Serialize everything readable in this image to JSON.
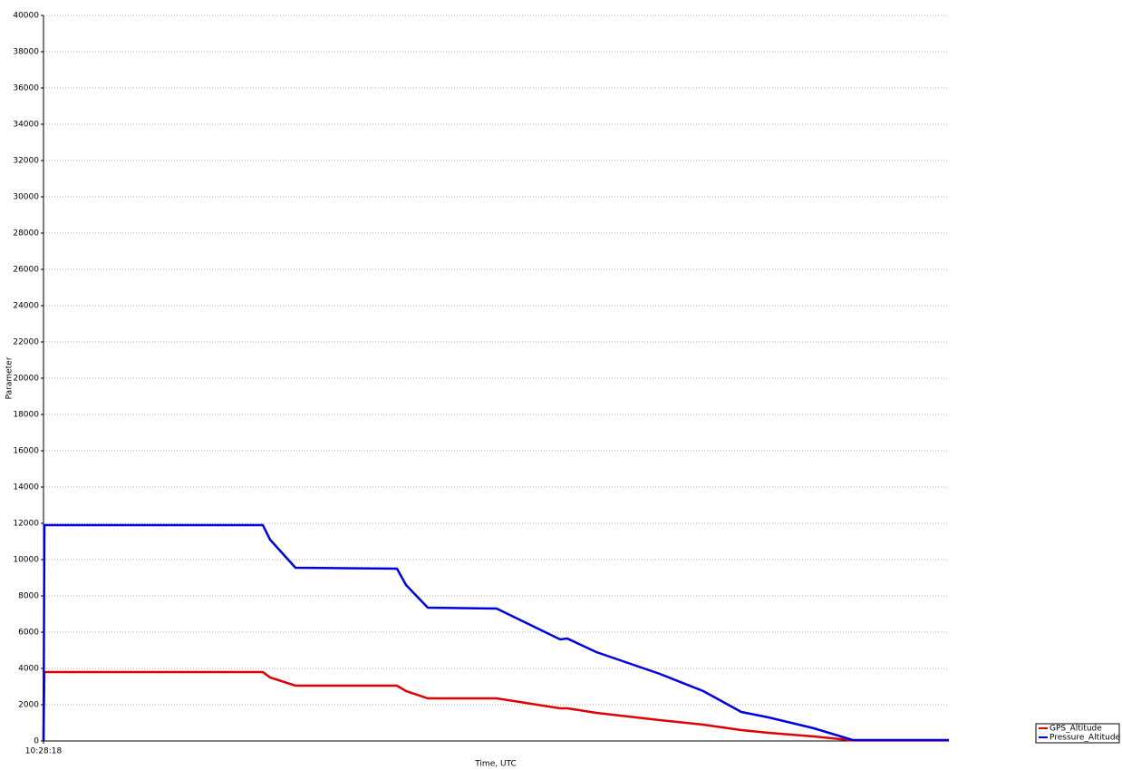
{
  "chart_data": {
    "type": "line",
    "x_label": "Time, UTC",
    "y_label": "Parameter",
    "x": [
      0,
      1,
      242,
      250,
      278,
      390,
      400,
      424,
      500,
      570,
      578,
      610,
      680,
      728,
      770,
      800,
      850,
      893,
      999
    ],
    "xlim": [
      0,
      999
    ],
    "xticks": [
      {
        "value": 0,
        "label": "10:28:18"
      }
    ],
    "ylim": [
      0,
      40000
    ],
    "yticks": [
      0,
      2000,
      4000,
      6000,
      8000,
      10000,
      12000,
      14000,
      16000,
      18000,
      20000,
      22000,
      24000,
      26000,
      28000,
      30000,
      32000,
      34000,
      36000,
      38000,
      40000
    ],
    "grid": true,
    "legend": "bottom-right",
    "series": [
      {
        "name": "GPS_Altitude",
        "color": "#e00000",
        "values": [
          0,
          3800,
          3800,
          3500,
          3050,
          3050,
          2750,
          2350,
          2350,
          1800,
          1800,
          1550,
          1150,
          900,
          600,
          450,
          250,
          30,
          30
        ]
      },
      {
        "name": "Pressure_Altitude",
        "color": "#0000e0",
        "values": [
          0,
          11900,
          11900,
          11100,
          9550,
          9500,
          8600,
          7350,
          7300,
          5600,
          5650,
          4900,
          3700,
          2750,
          1600,
          1300,
          700,
          50,
          50
        ]
      }
    ]
  }
}
